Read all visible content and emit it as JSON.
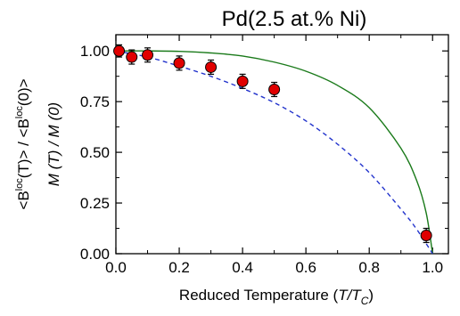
{
  "chart_data": {
    "type": "scatter",
    "title": "Pd(2.5 at.% Ni)",
    "xlabel": {
      "prefix": "Reduced Temperature (",
      "var": "T/T",
      "sub": "C",
      "suffix": ")"
    },
    "ylabel_outer": {
      "p1": "<B",
      "sup1": "loc",
      "p2": "(T)> / <B",
      "sup2": "loc",
      "p3": "(0)>"
    },
    "ylabel_inner": "M (T) / M (0)",
    "xlim": [
      0.0,
      1.05
    ],
    "ylim": [
      0.0,
      1.08
    ],
    "x_ticks": [
      "0.0",
      "0.2",
      "0.4",
      "0.6",
      "0.8",
      "1.0"
    ],
    "y_ticks": [
      "0.00",
      "0.25",
      "0.50",
      "0.75",
      "1.00"
    ],
    "series": [
      {
        "kind": "points",
        "color": "#e00000",
        "x": [
          0.01,
          0.05,
          0.1,
          0.2,
          0.3,
          0.4,
          0.5,
          0.98
        ],
        "y": [
          1.0,
          0.97,
          0.98,
          0.94,
          0.92,
          0.85,
          0.81,
          0.09
        ],
        "err": [
          0.03,
          0.035,
          0.035,
          0.035,
          0.035,
          0.035,
          0.035,
          0.035
        ]
      },
      {
        "kind": "curve",
        "style": "solid",
        "color": "#1a7a1a",
        "x": [
          0.0,
          0.1,
          0.2,
          0.3,
          0.4,
          0.5,
          0.6,
          0.7,
          0.8,
          0.9,
          0.95,
          0.98,
          1.0
        ],
        "y": [
          1.0,
          1.0,
          0.998,
          0.99,
          0.975,
          0.945,
          0.9,
          0.83,
          0.72,
          0.52,
          0.36,
          0.2,
          0.0
        ]
      },
      {
        "kind": "curve",
        "style": "dashed",
        "color": "#2233cc",
        "x": [
          0.0,
          0.1,
          0.2,
          0.3,
          0.4,
          0.5,
          0.6,
          0.7,
          0.8,
          0.9,
          0.95,
          1.0
        ],
        "y": [
          1.0,
          0.97,
          0.925,
          0.875,
          0.815,
          0.745,
          0.655,
          0.54,
          0.4,
          0.22,
          0.12,
          0.0
        ]
      }
    ]
  }
}
